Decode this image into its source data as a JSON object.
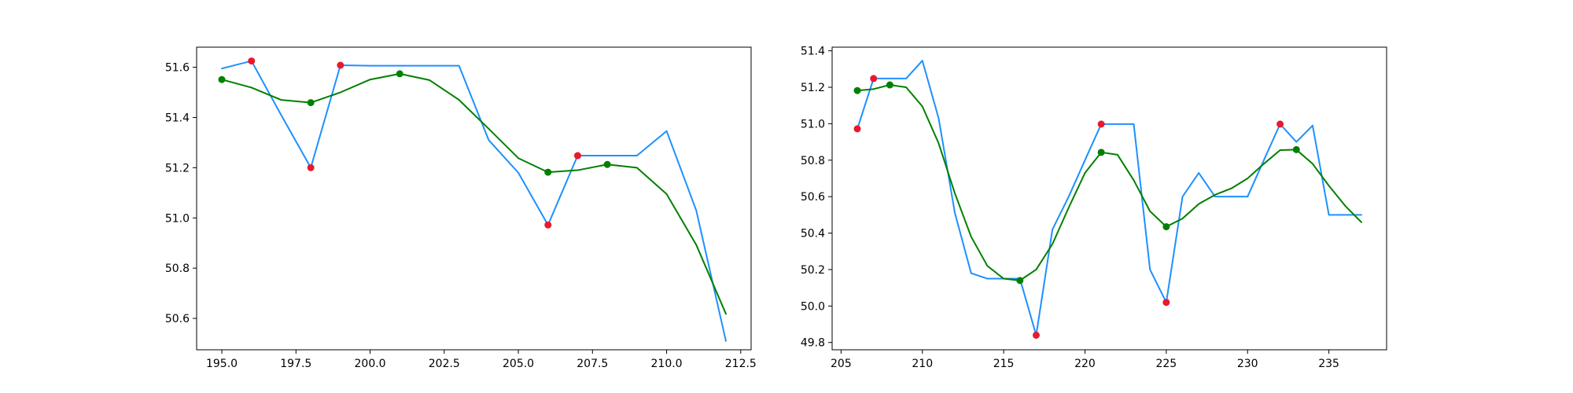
{
  "chart_data": [
    {
      "type": "line",
      "title": "",
      "xlabel": "",
      "ylabel": "",
      "xlim": [
        194.15,
        212.85
      ],
      "ylim": [
        50.475,
        51.68
      ],
      "xticks": [
        195.0,
        197.5,
        200.0,
        202.5,
        205.0,
        207.5,
        210.0,
        212.5
      ],
      "xtick_labels": [
        "195.0",
        "197.5",
        "200.0",
        "202.5",
        "205.0",
        "207.5",
        "210.0",
        "212.5"
      ],
      "yticks": [
        50.6,
        50.8,
        51.0,
        51.2,
        51.4,
        51.6
      ],
      "ytick_labels": [
        "50.6",
        "50.8",
        "51.0",
        "51.2",
        "51.4",
        "51.6"
      ],
      "grid": false,
      "series": [
        {
          "kind": "line",
          "color": "#1e90ff",
          "x": [
            195,
            196,
            197,
            198,
            199,
            200,
            201,
            202,
            203,
            204,
            205,
            206,
            207,
            208,
            209,
            210,
            211,
            212
          ],
          "y": [
            51.595,
            51.625,
            51.41,
            51.2,
            51.608,
            51.606,
            51.606,
            51.606,
            51.606,
            51.31,
            51.18,
            50.972,
            51.248,
            51.248,
            51.248,
            51.346,
            51.03,
            50.51
          ]
        },
        {
          "kind": "line",
          "color": "#008000",
          "x": [
            195,
            196,
            197,
            198,
            199,
            200,
            201,
            202,
            203,
            204,
            205,
            206,
            207,
            208,
            209,
            210,
            211,
            212
          ],
          "y": [
            51.551,
            51.519,
            51.47,
            51.459,
            51.5,
            51.551,
            51.574,
            51.549,
            51.47,
            51.355,
            51.238,
            51.182,
            51.19,
            51.213,
            51.2,
            51.095,
            50.893,
            50.618
          ]
        },
        {
          "kind": "scatter",
          "color": "#e8192c",
          "x": [
            196,
            198,
            199,
            206,
            207
          ],
          "y": [
            51.625,
            51.2,
            51.608,
            50.972,
            51.248
          ]
        },
        {
          "kind": "scatter",
          "color": "#008000",
          "x": [
            195,
            198,
            201,
            206,
            208
          ],
          "y": [
            51.551,
            51.459,
            51.574,
            51.182,
            51.213
          ]
        }
      ]
    },
    {
      "type": "line",
      "title": "",
      "xlabel": "",
      "ylabel": "",
      "xlim": [
        204.45,
        238.55
      ],
      "ylim": [
        49.76,
        51.42
      ],
      "xticks": [
        205,
        210,
        215,
        220,
        225,
        230,
        235
      ],
      "xtick_labels": [
        "205",
        "210",
        "215",
        "220",
        "225",
        "230",
        "235"
      ],
      "yticks": [
        49.8,
        50.0,
        50.2,
        50.4,
        50.6,
        50.8,
        51.0,
        51.2,
        51.4
      ],
      "ytick_labels": [
        "49.8",
        "50.0",
        "50.2",
        "50.4",
        "50.6",
        "50.8",
        "51.0",
        "51.2",
        "51.4"
      ],
      "grid": false,
      "series": [
        {
          "kind": "line",
          "color": "#1e90ff",
          "x": [
            206,
            207,
            208,
            209,
            210,
            211,
            212,
            213,
            214,
            215,
            216,
            217,
            218,
            219,
            220,
            221,
            222,
            223,
            224,
            225,
            226,
            227,
            228,
            229,
            230,
            231,
            232,
            233,
            234,
            235,
            236,
            237
          ],
          "y": [
            50.972,
            51.248,
            51.248,
            51.248,
            51.346,
            51.03,
            50.51,
            50.18,
            50.15,
            50.15,
            50.15,
            49.84,
            50.42,
            50.6,
            50.8,
            50.998,
            50.998,
            50.998,
            50.2,
            50.02,
            50.6,
            50.73,
            50.6,
            50.6,
            50.6,
            50.8,
            50.998,
            50.9,
            50.99,
            50.5,
            50.5,
            50.5
          ]
        },
        {
          "kind": "line",
          "color": "#008000",
          "x": [
            206,
            207,
            208,
            209,
            210,
            211,
            212,
            213,
            214,
            215,
            216,
            217,
            218,
            219,
            220,
            221,
            222,
            223,
            224,
            225,
            226,
            227,
            228,
            229,
            230,
            231,
            232,
            233,
            234,
            235,
            236,
            237
          ],
          "y": [
            51.182,
            51.19,
            51.213,
            51.2,
            51.095,
            50.893,
            50.618,
            50.38,
            50.22,
            50.15,
            50.14,
            50.2,
            50.34,
            50.54,
            50.73,
            50.843,
            50.83,
            50.69,
            50.52,
            50.435,
            50.48,
            50.56,
            50.61,
            50.645,
            50.7,
            50.78,
            50.855,
            50.858,
            50.78,
            50.66,
            50.55,
            50.46
          ]
        },
        {
          "kind": "scatter",
          "color": "#e8192c",
          "x": [
            206,
            207,
            217,
            221,
            225,
            232
          ],
          "y": [
            50.972,
            51.248,
            49.84,
            50.998,
            50.02,
            50.998
          ]
        },
        {
          "kind": "scatter",
          "color": "#008000",
          "x": [
            206,
            208,
            216,
            221,
            225,
            233
          ],
          "y": [
            51.182,
            51.213,
            50.14,
            50.843,
            50.435,
            50.858
          ]
        }
      ]
    }
  ]
}
